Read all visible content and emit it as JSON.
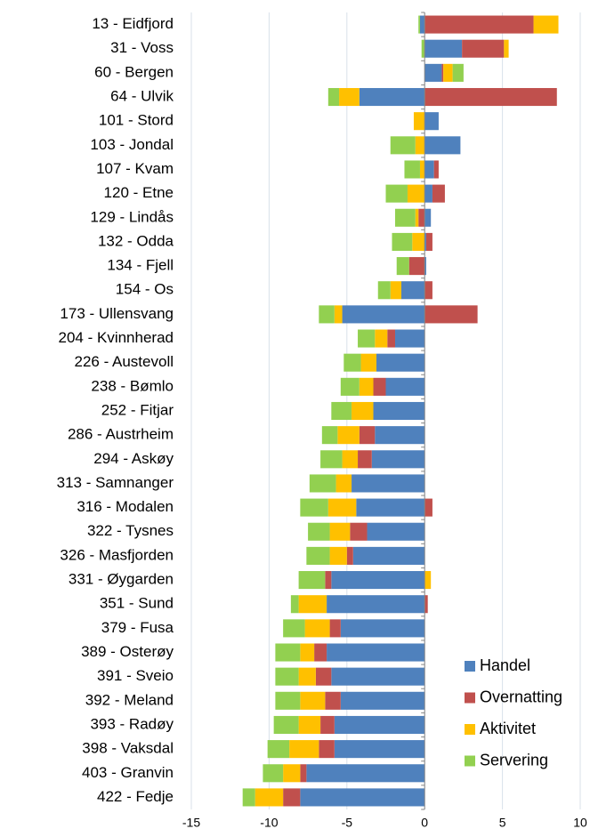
{
  "chart_data": {
    "type": "bar",
    "orientation": "horizontal",
    "stacked": true,
    "categories": [
      "13 - Eidfjord",
      "31 - Voss",
      "60 - Bergen",
      "64 - Ulvik",
      "101 - Stord",
      "103 - Jondal",
      "107 - Kvam",
      "120 - Etne",
      "129 - Lindås",
      "132 - Odda",
      "134 - Fjell",
      "154 - Os",
      "173 - Ullensvang",
      "204 - Kvinnherad",
      "226 - Austevoll",
      "238 - Bømlo",
      "252 - Fitjar",
      "286 - Austrheim",
      "294 - Askøy",
      "313 - Samnanger",
      "316 - Modalen",
      "322 - Tysnes",
      "326 - Masfjorden",
      "331 - Øygarden",
      "351 - Sund",
      "379 - Fusa",
      "389 - Osterøy",
      "391 - Sveio",
      "392 - Meland",
      "393 - Radøy",
      "398 - Vaksdal",
      "403 - Granvin",
      "422 - Fedje"
    ],
    "series": [
      {
        "name": "Handel",
        "color": "#4f81bd",
        "values": [
          -0.3,
          2.4,
          1.1,
          -4.2,
          0.9,
          2.3,
          0.6,
          0.5,
          0.4,
          0.1,
          0.1,
          -1.5,
          -5.3,
          -1.9,
          -3.1,
          -2.5,
          -3.3,
          -3.2,
          -3.4,
          -4.7,
          -4.4,
          -3.7,
          -4.6,
          -6.0,
          -6.3,
          -5.4,
          -6.3,
          -6.0,
          -5.4,
          -5.8,
          -5.8,
          -7.6,
          -8.0
        ]
      },
      {
        "name": "Overnatting",
        "color": "#c0504d",
        "values": [
          7.0,
          2.7,
          0.1,
          8.5,
          0,
          0,
          0.3,
          0.8,
          -0.4,
          0.4,
          -1.0,
          0.5,
          3.4,
          -0.5,
          0,
          -0.8,
          0,
          -1.0,
          -0.9,
          0,
          0.5,
          -1.1,
          -0.4,
          -0.4,
          0.2,
          -0.7,
          -0.8,
          -1.0,
          -1.0,
          -0.9,
          -1.0,
          -0.4,
          -1.1
        ]
      },
      {
        "name": "Aktivitet",
        "color": "#ffc000",
        "values": [
          1.6,
          0.3,
          0.6,
          -1.3,
          -0.7,
          -0.6,
          -0.3,
          -1.1,
          -0.2,
          -0.8,
          0,
          -0.7,
          -0.5,
          -0.8,
          -1.0,
          -0.9,
          -1.4,
          -1.4,
          -1.0,
          -1.0,
          -1.8,
          -1.3,
          -1.1,
          0.4,
          -1.8,
          -1.6,
          -0.9,
          -1.1,
          -1.6,
          -1.4,
          -1.9,
          -1.1,
          -1.8
        ]
      },
      {
        "name": "Servering",
        "color": "#92d050",
        "values": [
          -0.1,
          -0.2,
          0.7,
          -0.7,
          0,
          -1.6,
          -1.0,
          -1.4,
          -1.3,
          -1.3,
          -0.8,
          -0.8,
          -1.0,
          -1.1,
          -1.1,
          -1.2,
          -1.3,
          -1.0,
          -1.4,
          -1.7,
          -1.8,
          -1.4,
          -1.5,
          -1.7,
          -0.5,
          -1.4,
          -1.6,
          -1.5,
          -1.6,
          -1.6,
          -1.4,
          -1.3,
          -0.8
        ]
      }
    ],
    "xlim": [
      -15,
      10
    ],
    "xticks": [
      -15,
      -10,
      -5,
      0,
      5,
      10
    ],
    "grid": true,
    "legend": "lower right"
  }
}
